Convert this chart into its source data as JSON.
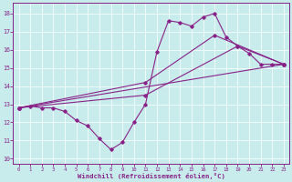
{
  "bg_color": "#c8ecec",
  "line_color": "#882288",
  "xlabel": "Windchill (Refroidissement éolien,°C)",
  "xlim": [
    -0.5,
    23.5
  ],
  "ylim": [
    9.7,
    18.6
  ],
  "xticks": [
    0,
    1,
    2,
    3,
    4,
    5,
    6,
    7,
    8,
    9,
    10,
    11,
    12,
    13,
    14,
    15,
    16,
    17,
    18,
    19,
    20,
    21,
    22,
    23
  ],
  "yticks": [
    10,
    11,
    12,
    13,
    14,
    15,
    16,
    17,
    18
  ],
  "main_x": [
    0,
    1,
    2,
    3,
    4,
    5,
    6,
    7,
    8,
    9,
    10,
    11,
    12,
    13,
    14,
    15,
    16,
    17,
    18,
    19,
    20,
    21,
    22,
    23
  ],
  "main_y": [
    12.8,
    12.9,
    12.8,
    12.8,
    12.6,
    12.1,
    11.8,
    11.1,
    10.5,
    10.9,
    12.0,
    13.0,
    15.9,
    17.6,
    17.5,
    17.3,
    17.8,
    18.0,
    16.7,
    16.2,
    15.8,
    15.2,
    15.2,
    15.2
  ],
  "line2_x": [
    0,
    23
  ],
  "line2_y": [
    12.8,
    15.2
  ],
  "line3_x": [
    0,
    11,
    19,
    23
  ],
  "line3_y": [
    12.8,
    13.5,
    16.2,
    15.2
  ],
  "line4_x": [
    0,
    11,
    17,
    23
  ],
  "line4_y": [
    12.8,
    14.2,
    16.8,
    15.2
  ]
}
